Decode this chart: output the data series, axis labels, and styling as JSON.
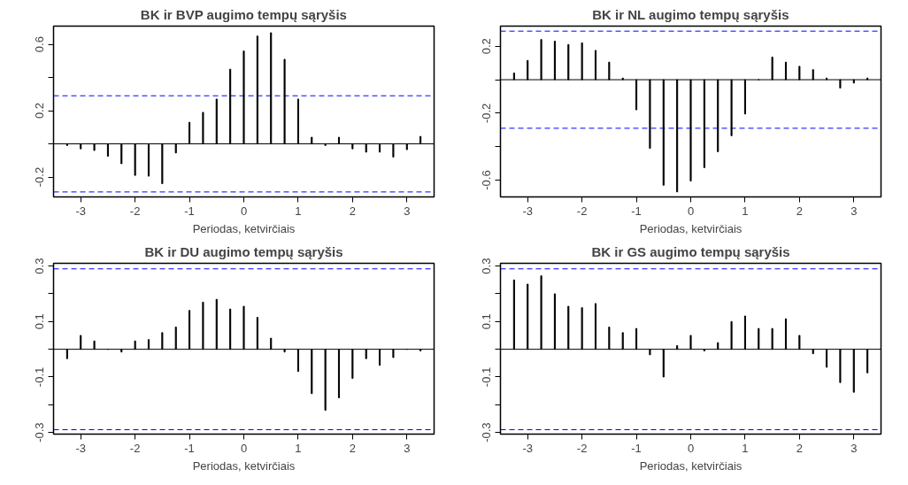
{
  "chart_data": [
    {
      "type": "bar",
      "title": "BK ir BVP augimo tempų sąryšis",
      "xlabel": "Periodas, ketvirčiais",
      "color": "#000000",
      "grid": false,
      "x": [
        -3.25,
        -3,
        -2.75,
        -2.5,
        -2.25,
        -2,
        -1.75,
        -1.5,
        -1.25,
        -1,
        -0.75,
        -0.5,
        -0.25,
        0,
        0.25,
        0.5,
        0.75,
        1,
        1.25,
        1.5,
        1.75,
        2,
        2.25,
        2.5,
        2.75,
        3,
        3.25
      ],
      "values": [
        -0.01,
        -0.03,
        -0.04,
        -0.075,
        -0.12,
        -0.19,
        -0.195,
        -0.24,
        -0.055,
        0.13,
        0.19,
        0.27,
        0.45,
        0.56,
        0.65,
        0.67,
        0.51,
        0.27,
        0.04,
        -0.01,
        0.04,
        -0.03,
        -0.05,
        -0.05,
        -0.08,
        -0.035,
        0.045
      ],
      "xlim": [
        -3.5,
        3.5
      ],
      "ylim": [
        -0.32,
        0.71
      ],
      "xticks": [
        -3,
        -2,
        -1,
        0,
        1,
        2,
        3
      ],
      "yticks": [
        -0.2,
        {
          "value": 0,
          "label": null
        },
        0.2,
        {
          "value": 0.4,
          "label": null
        },
        0.6
      ],
      "ref_lines": [
        {
          "axis": "y",
          "value": 0,
          "color": "#000000",
          "line_style": "solid"
        },
        {
          "axis": "y",
          "value": 0.29,
          "color": "#0000ff",
          "line_style": "dashed"
        },
        {
          "axis": "y",
          "value": -0.29,
          "color": "#0000ff",
          "line_style": "dashed"
        }
      ]
    },
    {
      "type": "bar",
      "title": "BK ir NL augimo tempų sąryšis",
      "xlabel": "Periodas, ketvirčiais",
      "color": "#000000",
      "grid": false,
      "x": [
        -3.25,
        -3,
        -2.75,
        -2.5,
        -2.25,
        -2,
        -1.75,
        -1.5,
        -1.25,
        -1,
        -0.75,
        -0.5,
        -0.25,
        0,
        0.25,
        0.5,
        0.75,
        1,
        1.25,
        1.5,
        1.75,
        2,
        2.25,
        2.5,
        2.75,
        3,
        3.25
      ],
      "values": [
        0.04,
        0.115,
        0.24,
        0.23,
        0.21,
        0.22,
        0.175,
        0.105,
        0.01,
        -0.18,
        -0.41,
        -0.63,
        -0.67,
        -0.605,
        -0.525,
        -0.43,
        -0.335,
        -0.205,
        0,
        0.135,
        0.105,
        0.08,
        0.06,
        0.01,
        -0.05,
        -0.02,
        0.01
      ],
      "xlim": [
        -3.5,
        3.5
      ],
      "ylim": [
        -0.7,
        0.32
      ],
      "xticks": [
        -3,
        -2,
        -1,
        0,
        1,
        2,
        3
      ],
      "yticks": [
        -0.6,
        {
          "value": -0.4,
          "label": null
        },
        -0.2,
        {
          "value": 0,
          "label": null
        },
        0.2
      ],
      "ref_lines": [
        {
          "axis": "y",
          "value": 0,
          "color": "#000000",
          "line_style": "solid"
        },
        {
          "axis": "y",
          "value": 0.29,
          "color": "#0000ff",
          "line_style": "dashed"
        },
        {
          "axis": "y",
          "value": -0.29,
          "color": "#0000ff",
          "line_style": "dashed"
        }
      ]
    },
    {
      "type": "bar",
      "title": "BK ir DU augimo tempų sąryšis",
      "xlabel": "Periodas, ketvirčiais",
      "color": "#000000",
      "grid": false,
      "x": [
        -3.25,
        -3,
        -2.75,
        -2.5,
        -2.25,
        -2,
        -1.75,
        -1.5,
        -1.25,
        -1,
        -0.75,
        -0.5,
        -0.25,
        0,
        0.25,
        0.5,
        0.75,
        1,
        1.25,
        1.5,
        1.75,
        2,
        2.25,
        2.5,
        2.75,
        3,
        3.25
      ],
      "values": [
        -0.034,
        0.05,
        0.03,
        0,
        -0.01,
        0.03,
        0.035,
        0.06,
        0.08,
        0.14,
        0.17,
        0.18,
        0.145,
        0.155,
        0.115,
        0.04,
        -0.01,
        -0.08,
        -0.16,
        -0.22,
        -0.175,
        -0.105,
        -0.034,
        -0.058,
        -0.03,
        0,
        -0.006
      ],
      "xlim": [
        -3.5,
        3.5
      ],
      "ylim": [
        -0.306,
        0.31
      ],
      "xticks": [
        -3,
        -2,
        -1,
        0,
        1,
        2,
        3
      ],
      "yticks": [
        -0.3,
        {
          "value": -0.2,
          "label": null
        },
        -0.1,
        {
          "value": 0,
          "label": null
        },
        0.1,
        {
          "value": 0.2,
          "label": null
        },
        0.3
      ],
      "ref_lines": [
        {
          "axis": "y",
          "value": 0,
          "color": "#000000",
          "line_style": "solid"
        },
        {
          "axis": "y",
          "value": 0.29,
          "color": "#0000ff",
          "line_style": "dashed"
        },
        {
          "axis": "y",
          "value": -0.29,
          "color": "#0000ff",
          "line_style": "dashed"
        }
      ]
    },
    {
      "type": "bar",
      "title": "BK ir GS augimo tempų sąryšis",
      "xlabel": "Periodas, ketvirčiais",
      "color": "#000000",
      "grid": false,
      "x": [
        -3.25,
        -3,
        -2.75,
        -2.5,
        -2.25,
        -2,
        -1.75,
        -1.5,
        -1.25,
        -1,
        -0.75,
        -0.5,
        -0.25,
        0,
        0.25,
        0.5,
        0.75,
        1,
        1.25,
        1.5,
        1.75,
        2,
        2.25,
        2.5,
        2.75,
        3,
        3.25
      ],
      "values": [
        0.25,
        0.235,
        0.265,
        0.2,
        0.155,
        0.15,
        0.165,
        0.08,
        0.06,
        0.075,
        -0.02,
        -0.1,
        0.013,
        0.05,
        -0.006,
        0.024,
        0.1,
        0.12,
        0.075,
        0.075,
        0.11,
        0.05,
        -0.016,
        -0.065,
        -0.12,
        -0.155,
        -0.085
      ],
      "xlim": [
        -3.5,
        3.5
      ],
      "ylim": [
        -0.306,
        0.31
      ],
      "xticks": [
        -3,
        -2,
        -1,
        0,
        1,
        2,
        3
      ],
      "yticks": [
        -0.3,
        {
          "value": -0.2,
          "label": null
        },
        -0.1,
        {
          "value": 0,
          "label": null
        },
        0.1,
        {
          "value": 0.2,
          "label": null
        },
        0.3
      ],
      "ref_lines": [
        {
          "axis": "y",
          "value": 0,
          "color": "#000000",
          "line_style": "solid"
        },
        {
          "axis": "y",
          "value": 0.29,
          "color": "#0000ff",
          "line_style": "dashed"
        },
        {
          "axis": "y",
          "value": -0.29,
          "color": "#0000ff",
          "line_style": "dashed"
        }
      ]
    }
  ]
}
